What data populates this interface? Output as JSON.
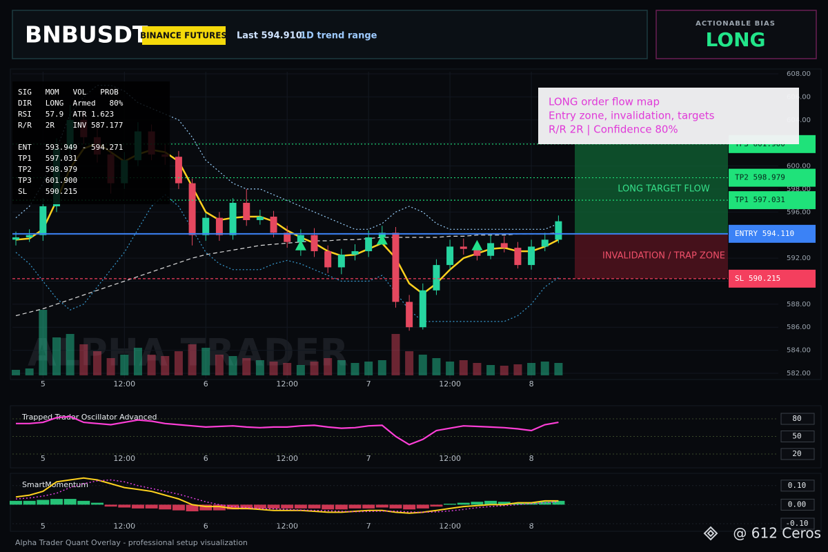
{
  "header": {
    "symbol": "BNBUSDT",
    "badge": "BINANCE FUTURES",
    "last": "Last 594.910",
    "range": "1D trend range",
    "bias_label": "ACTIONABLE BIAS",
    "bias": "LONG"
  },
  "info_panel": {
    "stats": [
      "SIG   MOM   VOL   PROB",
      "DIR   LONG  Armed   80%",
      "RSI   57.9  ATR 1.623",
      "R/R   2R    INV 587.177"
    ],
    "levels": [
      "ENT   593.949 - 594.271",
      "TP1   597.031",
      "TP2   598.979",
      "TP3   601.900",
      "SL    590.215"
    ]
  },
  "callout": [
    "LONG order flow map",
    "Entry zone, invalidation, targets",
    "R/R 2R | Confidence 80%"
  ],
  "watermark": "ALPHA TRADER",
  "target_zone_label": "LONG TARGET FLOW",
  "trap_zone_label": "INVALIDATION / TRAP ZONE",
  "footer": "Alpha Trader Quant Overlay - professional setup visualization",
  "credit": "@ 612 Ceros",
  "chart_data": [
    {
      "type": "candlestick",
      "categories": [
        null,
        null,
        "5",
        null,
        null,
        null,
        null,
        null,
        "12:00",
        null,
        null,
        null,
        null,
        null,
        "6",
        null,
        null,
        null,
        null,
        null,
        "12:00",
        null,
        null,
        null,
        null,
        null,
        "7",
        null,
        null,
        null,
        null,
        null,
        "12:00",
        null,
        null,
        null,
        null,
        null,
        "8",
        null,
        null
      ],
      "open": [
        593.6,
        593.8,
        594.0,
        596.5,
        601.5,
        604.0,
        602.5,
        601.0,
        598.5,
        600.5,
        603.0,
        601.0,
        600.8,
        598.5,
        594.0,
        595.5,
        594.0,
        596.8,
        595.3,
        595.6,
        594.2,
        593.4,
        594.0,
        592.6,
        591.2,
        592.3,
        592.6,
        593.8,
        594.2,
        588.2,
        586.0,
        589.2,
        591.4,
        593.0,
        592.8,
        592.2,
        593.3,
        592.9,
        591.4,
        593.0,
        593.6
      ],
      "high": [
        594.3,
        594.5,
        597.2,
        602.4,
        605.3,
        604.6,
        603.4,
        601.8,
        601.2,
        603.8,
        603.6,
        601.9,
        601.3,
        598.9,
        595.9,
        596.0,
        597.2,
        598.0,
        596.2,
        596.1,
        594.8,
        594.5,
        594.6,
        593.1,
        592.8,
        593.2,
        594.4,
        594.8,
        594.7,
        588.8,
        589.8,
        591.9,
        593.6,
        593.7,
        593.4,
        594.0,
        593.9,
        593.4,
        593.6,
        594.2,
        595.7
      ],
      "low": [
        593.1,
        593.4,
        593.5,
        596.0,
        600.9,
        601.9,
        600.3,
        597.6,
        598.0,
        600.0,
        600.5,
        600.1,
        598.0,
        593.1,
        593.5,
        593.5,
        593.6,
        594.8,
        594.9,
        593.8,
        592.9,
        592.2,
        592.1,
        590.7,
        590.6,
        591.8,
        592.1,
        593.3,
        587.7,
        585.7,
        585.8,
        588.8,
        591.0,
        592.3,
        591.8,
        591.9,
        592.5,
        591.1,
        591.0,
        592.6,
        593.3
      ],
      "close": [
        593.8,
        594.0,
        596.5,
        601.5,
        604.0,
        602.5,
        601.0,
        598.5,
        600.5,
        603.0,
        601.0,
        600.8,
        598.5,
        594.0,
        595.5,
        594.0,
        596.8,
        595.3,
        595.6,
        594.2,
        593.4,
        594.0,
        592.6,
        591.2,
        592.3,
        592.6,
        593.8,
        594.2,
        588.2,
        586.0,
        589.2,
        591.4,
        593.0,
        592.8,
        592.2,
        593.3,
        592.9,
        591.4,
        593.0,
        593.6,
        595.2
      ],
      "volume": [
        8,
        10,
        95,
        55,
        60,
        45,
        35,
        25,
        30,
        40,
        30,
        28,
        35,
        45,
        40,
        30,
        28,
        25,
        22,
        20,
        18,
        15,
        20,
        25,
        22,
        18,
        20,
        22,
        60,
        35,
        30,
        25,
        20,
        22,
        18,
        15,
        14,
        16,
        18,
        20,
        18
      ],
      "up_color": "#26d5a0",
      "down_color": "#e5485f",
      "overlays": [
        {
          "color": "#9bd3ff",
          "style": "dotted",
          "values": [
            595.5,
            596.5,
            598.5,
            601.5,
            604.5,
            606.0,
            607.0,
            607.0,
            606.5,
            605.5,
            605.0,
            604.5,
            604.0,
            602.5,
            600.5,
            599.5,
            598.5,
            598.0,
            598.0,
            597.5,
            597.0,
            596.5,
            596.0,
            595.5,
            595.0,
            594.5,
            594.5,
            595.0,
            596.0,
            596.5,
            596.0,
            595.0,
            594.5,
            594.5,
            594.5,
            594.5,
            594.5,
            594.5,
            594.5,
            594.5,
            595.0
          ]
        },
        {
          "color": "#3aa0d8",
          "style": "dotted",
          "values": [
            592.5,
            591.5,
            590.0,
            588.5,
            587.5,
            588.0,
            589.5,
            591.0,
            592.5,
            594.5,
            596.5,
            597.5,
            596.5,
            594.5,
            592.5,
            591.5,
            591.0,
            591.0,
            591.0,
            591.5,
            591.8,
            591.5,
            591.0,
            590.5,
            590.0,
            590.0,
            590.0,
            590.5,
            589.0,
            587.5,
            586.5,
            586.5,
            586.5,
            586.5,
            586.5,
            586.5,
            586.5,
            587.0,
            588.0,
            589.5,
            590.3
          ]
        },
        {
          "color": "#dddddd",
          "style": "dashed",
          "values": [
            587.0,
            587.3,
            587.6,
            588.0,
            588.4,
            588.8,
            589.2,
            589.6,
            590.0,
            590.4,
            590.8,
            591.2,
            591.6,
            592.0,
            592.3,
            592.5,
            592.7,
            592.9,
            593.1,
            593.2,
            593.3,
            593.4,
            593.5,
            593.5,
            593.6,
            593.6,
            593.7,
            593.8,
            593.8,
            593.8,
            593.8,
            593.8,
            593.9,
            593.9,
            594.0,
            594.0,
            594.0,
            594.1,
            594.1,
            594.1,
            594.2
          ]
        },
        {
          "color": "#ffd21f",
          "style": "solid",
          "values": [
            593.6,
            593.7,
            594.5,
            597.0,
            599.8,
            601.5,
            602.0,
            601.2,
            600.4,
            601.0,
            601.4,
            601.2,
            600.4,
            598.2,
            596.0,
            595.3,
            595.5,
            595.6,
            595.6,
            595.2,
            594.4,
            593.8,
            593.3,
            592.6,
            592.2,
            592.3,
            592.8,
            593.3,
            592.0,
            589.8,
            588.9,
            589.8,
            591.0,
            592.0,
            592.4,
            592.8,
            592.9,
            592.6,
            592.6,
            593.0,
            593.6
          ]
        }
      ],
      "signals": [
        {
          "index": 21,
          "value": 593.1
        },
        {
          "index": 27,
          "value": 593.6
        },
        {
          "index": 34,
          "value": 593.1
        }
      ],
      "levels": [
        {
          "value": 601.9,
          "label": "TP3 601.900",
          "color": "#1fe27a"
        },
        {
          "value": 598.979,
          "label": "TP2 598.979",
          "color": "#1fe27a"
        },
        {
          "value": 597.031,
          "label": "TP1 597.031",
          "color": "#1fe27a"
        },
        {
          "value": 594.11,
          "label": "ENTRY 594.110",
          "color": "#3b82f6"
        },
        {
          "value": 590.215,
          "label": "SL 590.215",
          "color": "#f43f5e"
        }
      ],
      "ylim": [
        582,
        608
      ],
      "yticks": [
        {
          "value": 582,
          "label": "582.00"
        },
        {
          "value": 584,
          "label": "584.00"
        },
        {
          "value": 586,
          "label": "586.00"
        },
        {
          "value": 588,
          "label": "588.00"
        },
        {
          "value": 590,
          "label": "590.00"
        },
        {
          "value": 592,
          "label": "592.00"
        },
        {
          "value": 594,
          "label": "594.00"
        },
        {
          "value": 596,
          "label": "596.00"
        },
        {
          "value": 598,
          "label": "598.00"
        },
        {
          "value": 600,
          "label": "600.00"
        },
        {
          "value": 602,
          "label": "602.00"
        },
        {
          "value": 604,
          "label": "604.00"
        },
        {
          "value": 606,
          "label": "606.00"
        },
        {
          "value": 608,
          "label": "608.00"
        }
      ],
      "grid": true
    },
    {
      "type": "line",
      "title": "Trapped Trader Oscillator Advanced",
      "categories": [
        null,
        null,
        "5",
        null,
        null,
        null,
        null,
        null,
        "12:00",
        null,
        null,
        null,
        null,
        null,
        "6",
        null,
        null,
        null,
        null,
        null,
        "12:00",
        null,
        null,
        null,
        null,
        null,
        "7",
        null,
        null,
        null,
        null,
        null,
        "12:00",
        null,
        null,
        null,
        null,
        null,
        "8",
        null,
        null
      ],
      "series": [
        {
          "name": "Trapped Trader Oscillator Advanced",
          "color": "#ff3fd8",
          "values": [
            72,
            72,
            74,
            82,
            84,
            74,
            72,
            70,
            74,
            78,
            76,
            72,
            70,
            68,
            66,
            67,
            68,
            66,
            65,
            66,
            66,
            68,
            69,
            66,
            64,
            65,
            68,
            69,
            50,
            36,
            45,
            60,
            64,
            68,
            67,
            66,
            65,
            63,
            60,
            70,
            74
          ]
        }
      ],
      "ylim": [
        0,
        100
      ],
      "yticks": [
        20,
        50,
        80
      ]
    },
    {
      "type": "combo",
      "title": "SmartMomentum",
      "categories": [
        null,
        null,
        "5",
        null,
        null,
        null,
        null,
        null,
        "12:00",
        null,
        null,
        null,
        null,
        null,
        "6",
        null,
        null,
        null,
        null,
        null,
        "12:00",
        null,
        null,
        null,
        null,
        null,
        "7",
        null,
        null,
        null,
        null,
        null,
        "12:00",
        null,
        null,
        null,
        null,
        null,
        "8",
        null,
        null
      ],
      "histogram": {
        "up_color": "#2be38a",
        "down_color": "#f0405f",
        "values": [
          0.02,
          0.02,
          0.025,
          0.03,
          0.03,
          0.02,
          0.01,
          -0.01,
          -0.015,
          -0.02,
          -0.02,
          -0.025,
          -0.03,
          -0.035,
          -0.03,
          -0.03,
          -0.025,
          -0.025,
          -0.02,
          -0.02,
          -0.02,
          -0.02,
          -0.02,
          -0.025,
          -0.025,
          -0.02,
          -0.02,
          -0.015,
          -0.02,
          -0.025,
          -0.02,
          -0.01,
          0.005,
          0.01,
          0.015,
          0.02,
          0.015,
          0.01,
          0.01,
          0.015,
          0.02
        ]
      },
      "series": [
        {
          "color": "#ffd21f",
          "style": "solid",
          "values": [
            0.04,
            0.05,
            0.07,
            0.12,
            0.13,
            0.14,
            0.13,
            0.11,
            0.09,
            0.08,
            0.07,
            0.05,
            0.03,
            0.0,
            -0.01,
            -0.01,
            -0.02,
            -0.02,
            -0.025,
            -0.03,
            -0.03,
            -0.03,
            -0.035,
            -0.04,
            -0.04,
            -0.035,
            -0.03,
            -0.03,
            -0.04,
            -0.045,
            -0.04,
            -0.03,
            -0.02,
            -0.01,
            -0.005,
            0.0,
            0.0,
            0.01,
            0.01,
            0.02,
            0.02
          ]
        },
        {
          "color": "#e040e0",
          "style": "dotted",
          "values": [
            0.03,
            0.035,
            0.045,
            0.06,
            0.09,
            0.11,
            0.125,
            0.13,
            0.12,
            0.1,
            0.085,
            0.07,
            0.055,
            0.035,
            0.015,
            0.0,
            -0.01,
            -0.015,
            -0.02,
            -0.022,
            -0.025,
            -0.028,
            -0.03,
            -0.032,
            -0.035,
            -0.037,
            -0.036,
            -0.034,
            -0.034,
            -0.038,
            -0.04,
            -0.038,
            -0.033,
            -0.025,
            -0.016,
            -0.01,
            -0.005,
            0.0,
            0.005,
            0.01,
            0.015
          ]
        }
      ],
      "ylim": [
        -0.14,
        0.15
      ],
      "yticks": [
        {
          "value": -0.1,
          "label": "-0.10"
        },
        {
          "value": 0,
          "label": "0.00"
        },
        {
          "value": 0.1,
          "label": "0.10"
        }
      ]
    }
  ]
}
